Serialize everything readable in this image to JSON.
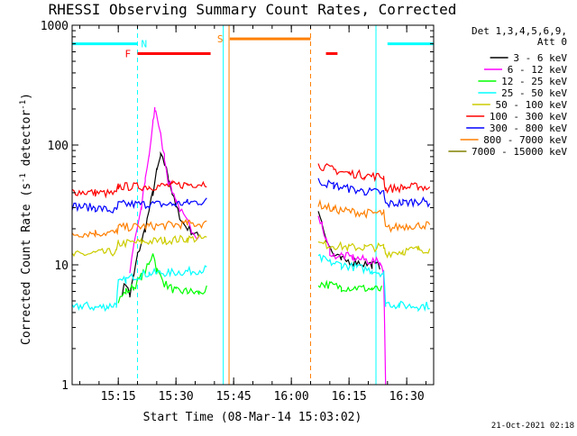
{
  "chart_data": {
    "type": "line",
    "title": "RHESSI Observing Summary Count Rates, Corrected",
    "xlabel": "Start Time (08-Mar-14 15:03:02)",
    "ylabel_main": "Corrected Count Rate (s",
    "ylabel_sup": "-1",
    "ylabel_tail": " detector",
    "ylabel_close": ")",
    "y_scale": "log",
    "ylim": [
      1,
      1000
    ],
    "xlim_minutes": [
      0,
      94
    ],
    "x_ticks": [
      {
        "min": 12,
        "label": "15:15"
      },
      {
        "min": 27,
        "label": "15:30"
      },
      {
        "min": 42,
        "label": "15:45"
      },
      {
        "min": 57,
        "label": "16:00"
      },
      {
        "min": 72,
        "label": "16:15"
      },
      {
        "min": 87,
        "label": "16:30"
      }
    ],
    "y_ticks": [
      {
        "value": 1,
        "label": "1"
      },
      {
        "value": 10,
        "label": "10"
      },
      {
        "value": 100,
        "label": "100"
      },
      {
        "value": 1000,
        "label": "1000"
      }
    ],
    "detector_note": [
      "Det 1,3,4,5,6,9,",
      "Att 0"
    ],
    "footer_date": "21-Oct-2021 02:18",
    "legend": [
      {
        "label": "3 - 6 keV",
        "color": "#000000"
      },
      {
        "label": "6 - 12 keV",
        "color": "#ff00ff"
      },
      {
        "label": "12 - 25 keV",
        "color": "#00ff00"
      },
      {
        "label": "25 - 50 keV",
        "color": "#00ffff"
      },
      {
        "label": "50 - 100 keV",
        "color": "#cccc00"
      },
      {
        "label": "100 - 300 keV",
        "color": "#ff0000"
      },
      {
        "label": "300 - 800 keV",
        "color": "#0000ff"
      },
      {
        "label": "800 - 7000 keV",
        "color": "#ff7f00"
      },
      {
        "label": "7000 - 15000 keV",
        "color": "#808000"
      }
    ],
    "segments": [
      {
        "name": "3 - 6 keV",
        "color": "#000000",
        "points": [
          [
            13,
            6
          ],
          [
            14,
            7
          ],
          [
            15,
            5.5
          ],
          [
            16,
            8
          ],
          [
            17,
            12
          ],
          [
            19,
            20
          ],
          [
            21,
            40
          ],
          [
            22,
            60
          ],
          [
            23,
            80
          ],
          [
            24,
            70
          ],
          [
            25,
            55
          ],
          [
            26,
            40
          ],
          [
            27,
            30
          ],
          [
            29,
            22
          ],
          [
            31,
            19
          ],
          [
            33,
            17
          ]
        ]
      },
      {
        "name": "6 - 12 keV",
        "color": "#ff00ff",
        "points": [
          [
            15,
            9
          ],
          [
            16,
            15
          ],
          [
            18,
            30
          ],
          [
            19,
            50
          ],
          [
            20,
            80
          ],
          [
            21,
            150
          ],
          [
            21.5,
            200
          ],
          [
            22,
            180
          ],
          [
            23,
            120
          ],
          [
            24,
            80
          ],
          [
            25,
            50
          ],
          [
            27,
            35
          ],
          [
            29,
            25
          ],
          [
            31,
            20
          ],
          [
            33,
            17
          ]
        ]
      },
      {
        "name": "12 - 25 keV",
        "color": "#00ff00",
        "points": [
          [
            12,
            5
          ],
          [
            14,
            6
          ],
          [
            16,
            6.5
          ],
          [
            18,
            8
          ],
          [
            20,
            10
          ],
          [
            21,
            13
          ],
          [
            22,
            9
          ],
          [
            24,
            7
          ],
          [
            27,
            6
          ],
          [
            30,
            6
          ],
          [
            33,
            5.8
          ],
          [
            35,
            6.2
          ]
        ]
      },
      {
        "name": "25 - 50 keV",
        "color": "#00ffff",
        "points": [
          [
            0,
            4.3
          ],
          [
            3,
            4.6
          ],
          [
            6,
            4.4
          ],
          [
            9,
            4.5
          ],
          [
            11.5,
            4.7
          ],
          [
            12,
            7
          ],
          [
            14,
            7.5
          ],
          [
            16,
            8
          ],
          [
            20,
            8.5
          ],
          [
            25,
            8.6
          ],
          [
            30,
            8.8
          ],
          [
            35,
            9.2
          ]
        ]
      },
      {
        "name": "50 - 100 keV",
        "color": "#cccc00",
        "points": [
          [
            0,
            12
          ],
          [
            6,
            12.5
          ],
          [
            11.5,
            12.8
          ],
          [
            12,
            15
          ],
          [
            18,
            15.5
          ],
          [
            24,
            16
          ],
          [
            30,
            16.5
          ],
          [
            35,
            16.5
          ]
        ]
      },
      {
        "name": "100 - 300 keV",
        "color": "#ff0000",
        "points": [
          [
            0,
            41
          ],
          [
            6,
            40
          ],
          [
            11.5,
            39
          ],
          [
            12,
            45
          ],
          [
            20,
            45
          ],
          [
            26,
            46
          ],
          [
            30,
            47
          ],
          [
            35,
            48
          ]
        ]
      },
      {
        "name": "300 - 800 keV",
        "color": "#0000ff",
        "points": [
          [
            0,
            31
          ],
          [
            6,
            30
          ],
          [
            11.5,
            28
          ],
          [
            12,
            32
          ],
          [
            20,
            32
          ],
          [
            26,
            32
          ],
          [
            30,
            33
          ],
          [
            35,
            34
          ]
        ]
      },
      {
        "name": "800 - 7000 keV",
        "color": "#ff7f00",
        "points": [
          [
            0,
            18
          ],
          [
            6,
            18.5
          ],
          [
            11.5,
            18.5
          ],
          [
            12,
            20.5
          ],
          [
            20,
            21
          ],
          [
            26,
            21.5
          ],
          [
            30,
            22
          ],
          [
            35,
            22
          ]
        ]
      },
      {
        "name": "3 - 6 keV",
        "color": "#000000",
        "points": [
          [
            64,
            30
          ],
          [
            65,
            22
          ],
          [
            66,
            17
          ],
          [
            67,
            14
          ],
          [
            68,
            12
          ],
          [
            70,
            11
          ],
          [
            74,
            10.5
          ],
          [
            78,
            10
          ],
          [
            80,
            9.8
          ]
        ]
      },
      {
        "name": "6 - 12 keV",
        "color": "#ff00ff",
        "points": [
          [
            64,
            27
          ],
          [
            65,
            21
          ],
          [
            66,
            16
          ],
          [
            67,
            13
          ],
          [
            68,
            12
          ],
          [
            70,
            12
          ],
          [
            73,
            11.5
          ],
          [
            76,
            11
          ],
          [
            80,
            10.5
          ],
          [
            81,
            9
          ],
          [
            81.5,
            1
          ]
        ]
      },
      {
        "name": "12 - 25 keV",
        "color": "#00ff00",
        "points": [
          [
            64,
            7
          ],
          [
            67,
            6.8
          ],
          [
            70,
            6.5
          ],
          [
            74,
            6.4
          ],
          [
            78,
            6.3
          ],
          [
            80.5,
            6.2
          ]
        ]
      },
      {
        "name": "25 - 50 keV",
        "color": "#00ffff",
        "points": [
          [
            64,
            11.5
          ],
          [
            67,
            10.5
          ],
          [
            70,
            10
          ],
          [
            74,
            9.5
          ],
          [
            78,
            9
          ],
          [
            81,
            8.5
          ],
          [
            81.5,
            4.8
          ],
          [
            85,
            4.6
          ],
          [
            90,
            4.5
          ],
          [
            93,
            4.6
          ]
        ]
      },
      {
        "name": "50 - 100 keV",
        "color": "#cccc00",
        "points": [
          [
            64,
            15
          ],
          [
            68,
            14.5
          ],
          [
            72,
            14
          ],
          [
            76,
            14
          ],
          [
            81,
            14
          ],
          [
            81.5,
            12.5
          ],
          [
            86,
            13
          ],
          [
            90,
            13.5
          ],
          [
            93,
            13.5
          ]
        ]
      },
      {
        "name": "100 - 300 keV",
        "color": "#ff0000",
        "points": [
          [
            64,
            68
          ],
          [
            68,
            62
          ],
          [
            72,
            58
          ],
          [
            76,
            56
          ],
          [
            81,
            54
          ],
          [
            81.5,
            43
          ],
          [
            86,
            44
          ],
          [
            90,
            45
          ],
          [
            93,
            44
          ]
        ]
      },
      {
        "name": "300 - 800 keV",
        "color": "#0000ff",
        "points": [
          [
            64,
            50
          ],
          [
            68,
            46
          ],
          [
            72,
            43
          ],
          [
            76,
            41
          ],
          [
            81,
            40
          ],
          [
            81.5,
            32
          ],
          [
            86,
            33
          ],
          [
            90,
            34
          ],
          [
            93,
            33
          ]
        ]
      },
      {
        "name": "800 - 7000 keV",
        "color": "#ff7f00",
        "points": [
          [
            64,
            32
          ],
          [
            68,
            29
          ],
          [
            72,
            28
          ],
          [
            76,
            27
          ],
          [
            81,
            27
          ],
          [
            81.5,
            20
          ],
          [
            86,
            21
          ],
          [
            90,
            21.5
          ],
          [
            93,
            21.5
          ]
        ]
      }
    ],
    "flag_bars": [
      {
        "label": "N",
        "color": "#00ffff",
        "x": [
          0,
          17
        ],
        "y": 700
      },
      {
        "label": "",
        "color": "#00ffff",
        "x": [
          82,
          94
        ],
        "y": 700
      },
      {
        "label": "F",
        "color": "#ff0000",
        "x": [
          17,
          36
        ],
        "y": 580
      },
      {
        "label": "",
        "color": "#ff0000",
        "x": [
          66,
          69
        ],
        "y": 580
      },
      {
        "label": "S",
        "color": "#ff7f00",
        "x": [
          41,
          62
        ],
        "y": 770
      }
    ],
    "vlines": [
      {
        "x": 0,
        "color": "#00ffff",
        "style": "solid"
      },
      {
        "x": 17,
        "color": "#00ffff",
        "style": "dashed"
      },
      {
        "x": 39.3,
        "color": "#00ffff",
        "style": "solid"
      },
      {
        "x": 40.8,
        "color": "#ff7f00",
        "style": "solid"
      },
      {
        "x": 62,
        "color": "#ff7f00",
        "style": "dashed"
      },
      {
        "x": 79,
        "color": "#00ffff",
        "style": "solid"
      },
      {
        "x": 94,
        "color": "#00ffff",
        "style": "dashed"
      }
    ]
  }
}
